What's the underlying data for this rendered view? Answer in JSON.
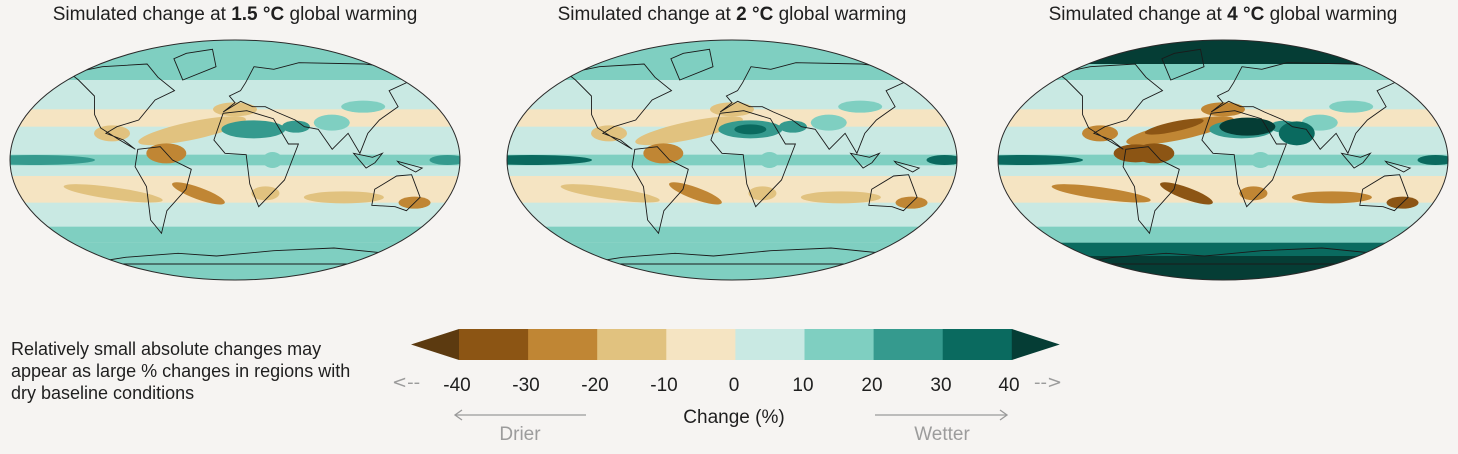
{
  "panels": [
    {
      "prefix": "Simulated change at ",
      "warming": "1.5 °C",
      "suffix": " global warming",
      "intensity": 0.55
    },
    {
      "prefix": "Simulated change at ",
      "warming": "2 °C",
      "suffix": " global warming",
      "intensity": 0.75
    },
    {
      "prefix": "Simulated change at ",
      "warming": "4 °C",
      "suffix": " global warming",
      "intensity": 1.0
    }
  ],
  "note": "Relatively small absolute changes may appear as large % changes in regions with dry baseline conditions",
  "legend": {
    "title": "Change (%)",
    "ticks": [
      "-40",
      "-30",
      "-20",
      "-10",
      "0",
      "10",
      "20",
      "30",
      "40"
    ],
    "colors": [
      "#5c3a10",
      "#8c5514",
      "#c08634",
      "#e1c27f",
      "#f5e4c2",
      "#c9e9e3",
      "#7fcfc1",
      "#359a8e",
      "#0a6a5f",
      "#053d35"
    ],
    "left_arrow": "<--",
    "right_arrow": "-->",
    "drier_label": "Drier",
    "wetter_label": "Wetter"
  }
}
